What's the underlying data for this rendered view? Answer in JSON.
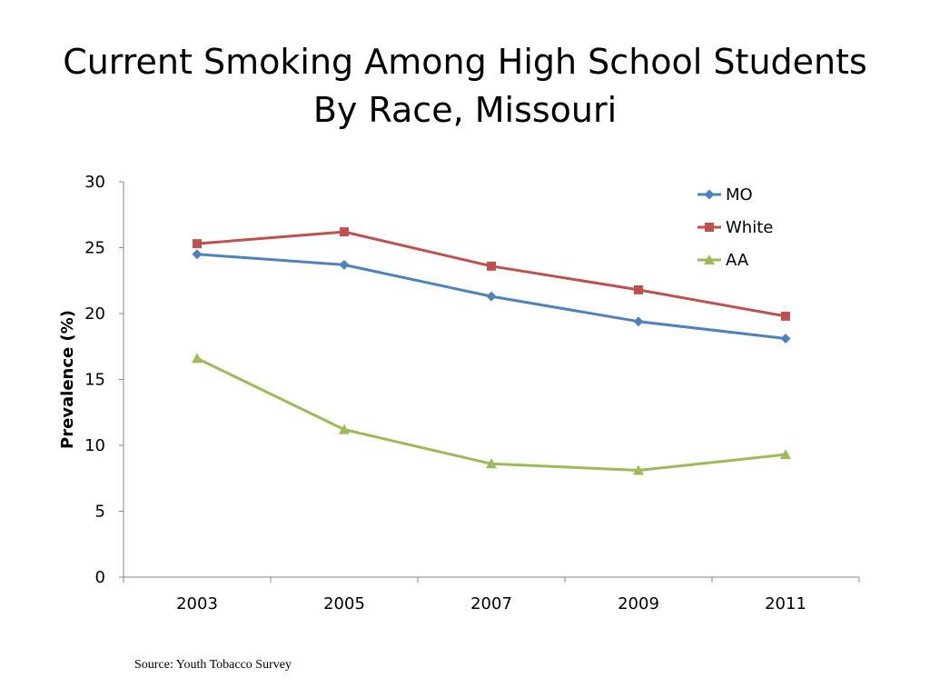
{
  "slide": {
    "title_line1": "Current Smoking Among High School Students",
    "title_line2": "By Race, Missouri",
    "source": "Source: Youth Tobacco Survey"
  },
  "chart_data": {
    "type": "line",
    "title": "Current Smoking Among High School Students By Race, Missouri",
    "xlabel": "",
    "ylabel": "Prevalence (%)",
    "categories": [
      "2003",
      "2005",
      "2007",
      "2009",
      "2011"
    ],
    "ylim": [
      0,
      30
    ],
    "yticks": [
      0,
      5,
      10,
      15,
      20,
      25,
      30
    ],
    "grid": false,
    "legend_position": "top-right",
    "series": [
      {
        "name": "MO",
        "values": [
          24.5,
          23.7,
          21.3,
          19.4,
          18.1
        ],
        "color": "#4F81BD",
        "marker": "diamond"
      },
      {
        "name": "White",
        "values": [
          25.3,
          26.2,
          23.6,
          21.8,
          19.8
        ],
        "color": "#C0504D",
        "marker": "square"
      },
      {
        "name": "AA",
        "values": [
          16.6,
          11.2,
          8.6,
          8.1,
          9.3
        ],
        "color": "#9BBB59",
        "marker": "triangle"
      }
    ]
  }
}
